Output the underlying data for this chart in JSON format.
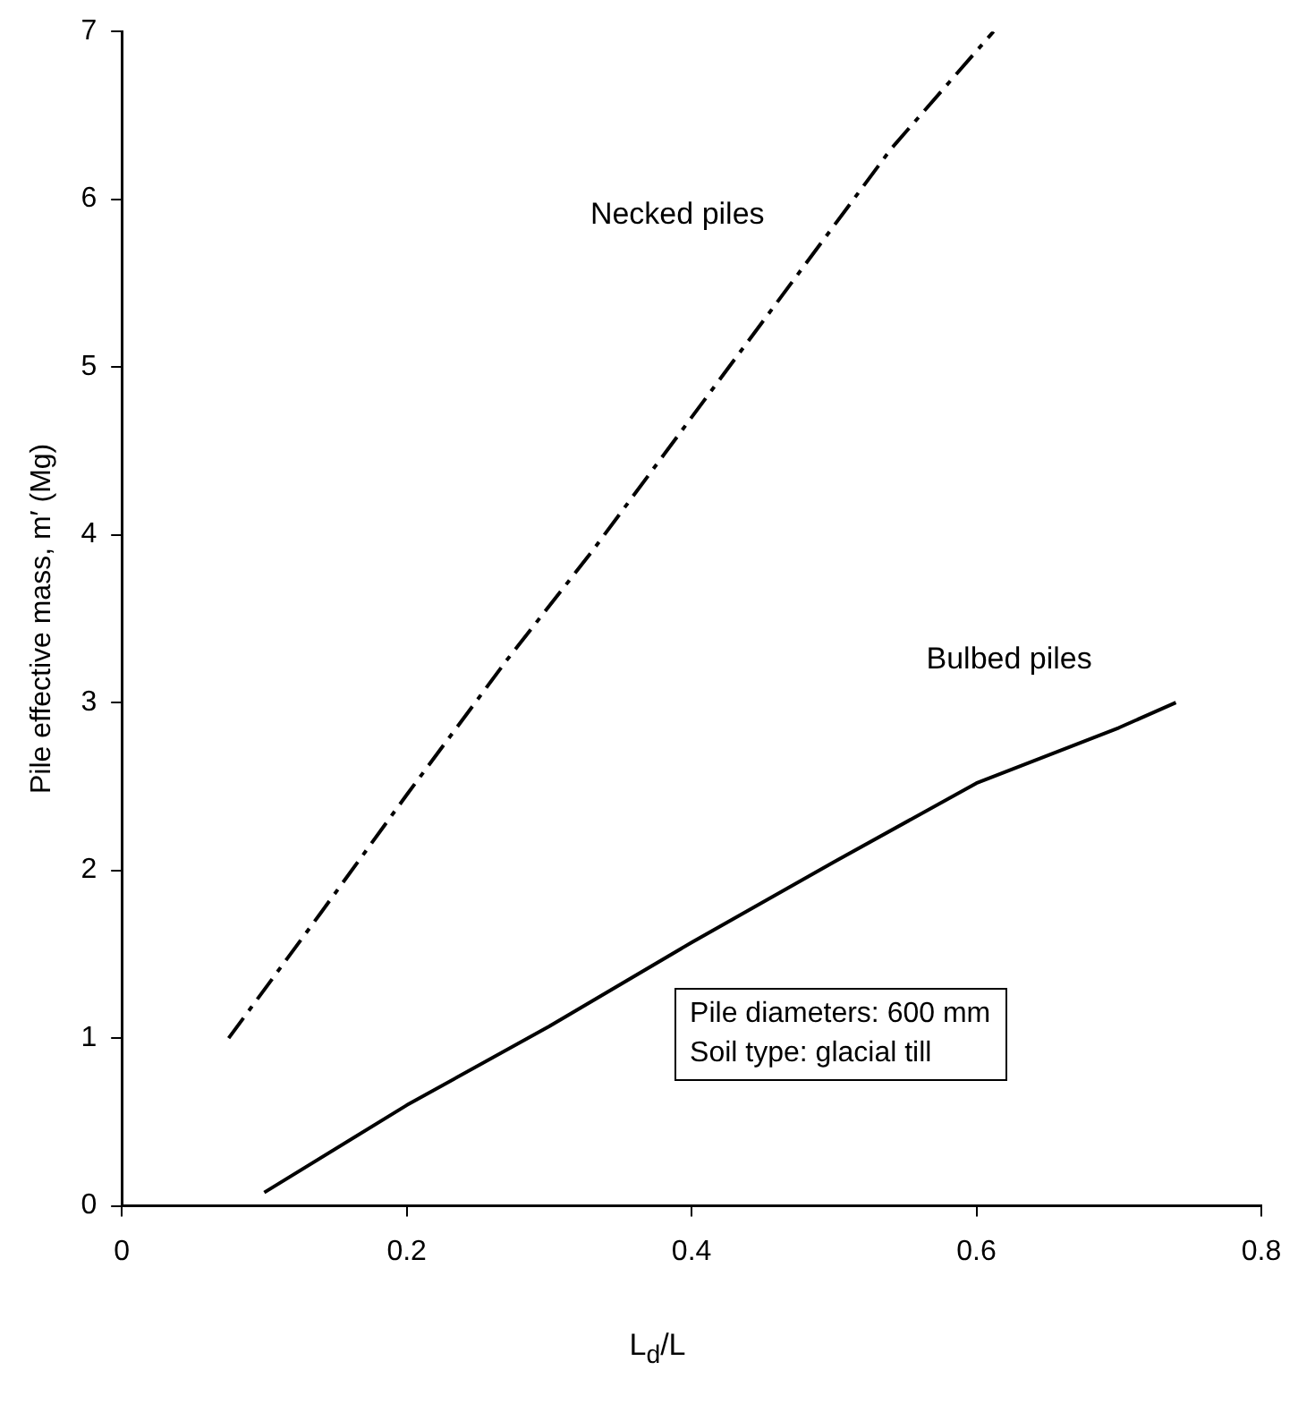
{
  "chart_data": {
    "type": "line",
    "xlabel": "L$_{d}$/L",
    "ylabel": "Pile effective mass, m′ (Mg)",
    "xlim": [
      0,
      0.8
    ],
    "xticks": [
      0,
      0.2,
      0.4,
      0.6,
      0.8
    ],
    "ylim": [
      0,
      7
    ],
    "yticks": [
      0,
      1,
      2,
      3,
      4,
      5,
      6,
      7
    ],
    "grid": false,
    "legend": false,
    "marker": "none",
    "series": [
      {
        "name": "Necked piles",
        "color": "#000000",
        "line_style": "dashed",
        "x": [
          0.075,
          0.14,
          0.2,
          0.27,
          0.33,
          0.4,
          0.47,
          0.54,
          0.612
        ],
        "values": [
          1.0,
          1.75,
          2.45,
          3.25,
          3.9,
          4.7,
          5.5,
          6.3,
          7.0
        ]
      },
      {
        "name": "Bulbed piles",
        "color": "#000000",
        "line_style": "solid",
        "x": [
          0.1,
          0.2,
          0.3,
          0.4,
          0.5,
          0.6,
          0.7,
          0.74
        ],
        "values": [
          0.08,
          0.6,
          1.07,
          1.57,
          2.05,
          2.52,
          2.85,
          3.0
        ]
      }
    ],
    "annotations": [
      "Pile diameters: 600 mm",
      "Soil type: glacial till"
    ]
  }
}
